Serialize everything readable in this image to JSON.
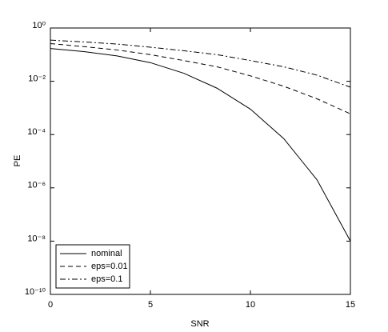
{
  "chart_data": {
    "type": "line",
    "x_label": "SNR",
    "y_label": "PE",
    "log_y": true,
    "x": [
      0,
      1.67,
      3.33,
      5,
      6.67,
      8.33,
      10,
      11.67,
      13.33,
      15
    ],
    "series": [
      {
        "name": "nominal",
        "color": "#000000",
        "dash": "solid",
        "values": [
          0.17,
          0.13,
          0.09,
          0.05,
          0.02,
          0.0055,
          0.0009,
          7e-05,
          2e-06,
          1e-08
        ]
      },
      {
        "name": "eps=0.01",
        "color": "#000000",
        "dash": "dashed",
        "values": [
          0.26,
          0.2,
          0.15,
          0.1,
          0.06,
          0.035,
          0.016,
          0.0065,
          0.0022,
          0.0006
        ]
      },
      {
        "name": "eps=0.1",
        "color": "#000000",
        "dash": "dashdot",
        "values": [
          0.35,
          0.3,
          0.25,
          0.19,
          0.14,
          0.1,
          0.06,
          0.035,
          0.017,
          0.006
        ]
      }
    ],
    "xlim": [
      0,
      15
    ],
    "xticks": [
      0,
      5,
      10,
      15
    ],
    "ylim": [
      1e-10,
      1
    ],
    "yticks": [
      {
        "value": 1e-10,
        "label": "10⁻¹⁰"
      },
      {
        "value": 1e-08,
        "label": "10⁻⁸"
      },
      {
        "value": 1e-06,
        "label": "10⁻⁶"
      },
      {
        "value": 0.0001,
        "label": "10⁻⁴"
      },
      {
        "value": 0.01,
        "label": "10⁻²"
      },
      {
        "value": 1,
        "label": "10⁰"
      }
    ],
    "legend": "lower left"
  }
}
